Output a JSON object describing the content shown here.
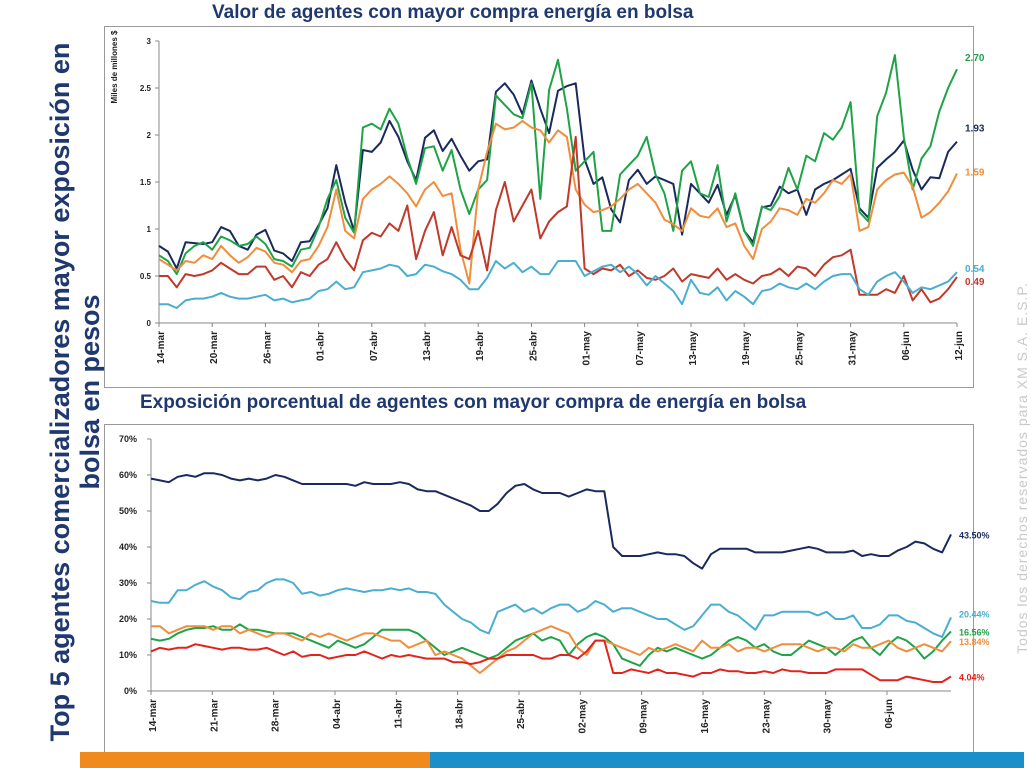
{
  "side_title": "Top 5 agentes comercializadores mayor exposición en bolsa en pesos",
  "watermark": "Todos los derechos reservados para XM S.A. E.S.P.",
  "colors": {
    "navy": "#1a2a5e",
    "green": "#1fa347",
    "orange": "#ef8e3c",
    "red": "#c0392b",
    "lightblue": "#4aaed0",
    "red_bright": "#e3231b",
    "title": "#1f3870",
    "bar_orange": "#f08a1c",
    "bar_blue": "#1a8fc9"
  },
  "chart_data": [
    {
      "type": "line",
      "title": "Valor de agentes con mayor compra energía en bolsa",
      "ylabel": "Miles de millones $",
      "xlabel": "",
      "ylim": [
        0,
        3
      ],
      "yticks": [
        0,
        0.5,
        1,
        1.5,
        2,
        2.5,
        3
      ],
      "ytick_labels": [
        "0",
        "0.5",
        "1",
        "1.5",
        "2",
        "2.5",
        "3"
      ],
      "xtick_labels": [
        "14-mar",
        "20-mar",
        "26-mar",
        "01-abr",
        "07-abr",
        "13-abr",
        "19-abr",
        "25-abr",
        "01-may",
        "07-may",
        "13-may",
        "19-may",
        "25-may",
        "31-may",
        "06-jun",
        "12-jun"
      ],
      "n_points": 91,
      "series": [
        {
          "name": "navy",
          "color": "#1a2a5e",
          "end_label": "1.93",
          "values": [
            0.82,
            0.76,
            0.58,
            0.86,
            0.85,
            0.84,
            0.86,
            1.02,
            0.98,
            0.82,
            0.78,
            0.94,
            0.99,
            0.77,
            0.74,
            0.66,
            0.86,
            0.87,
            1.04,
            1.22,
            1.68,
            1.28,
            0.98,
            1.84,
            1.82,
            1.92,
            2.15,
            1.98,
            1.72,
            1.52,
            1.97,
            2.05,
            1.83,
            1.96,
            1.78,
            1.62,
            1.72,
            1.74,
            2.46,
            2.55,
            2.43,
            2.22,
            2.58,
            2.28,
            2.02,
            2.47,
            2.52,
            2.55,
            1.74,
            1.48,
            1.55,
            1.21,
            1.07,
            1.52,
            1.63,
            1.48,
            1.56,
            1.52,
            1.48,
            0.94,
            1.48,
            1.38,
            1.28,
            1.47,
            1.15,
            1.36,
            0.98,
            0.86,
            1.23,
            1.25,
            1.45,
            1.38,
            1.42,
            1.15,
            1.42,
            1.48,
            1.52,
            1.58,
            1.64,
            1.22,
            1.12,
            1.65,
            1.74,
            1.82,
            1.94,
            1.63,
            1.42,
            1.55,
            1.54,
            1.82,
            1.93
          ]
        },
        {
          "name": "green",
          "color": "#1fa347",
          "end_label": "2.70",
          "values": [
            0.72,
            0.66,
            0.52,
            0.74,
            0.82,
            0.86,
            0.78,
            0.92,
            0.88,
            0.82,
            0.84,
            0.92,
            0.84,
            0.68,
            0.66,
            0.6,
            0.78,
            0.8,
            1.02,
            1.32,
            1.52,
            1.12,
            0.96,
            2.08,
            2.12,
            2.06,
            2.28,
            2.12,
            1.76,
            1.48,
            1.86,
            1.88,
            1.62,
            1.84,
            1.42,
            1.16,
            1.42,
            1.52,
            2.42,
            2.32,
            2.22,
            2.18,
            2.55,
            1.32,
            2.48,
            2.8,
            2.28,
            1.62,
            1.72,
            1.82,
            0.98,
            0.98,
            1.58,
            1.68,
            1.78,
            1.98,
            1.58,
            1.38,
            0.98,
            1.62,
            1.72,
            1.38,
            1.34,
            1.68,
            1.08,
            1.38,
            0.98,
            0.82,
            1.24,
            1.2,
            1.35,
            1.65,
            1.42,
            1.78,
            1.72,
            2.02,
            1.95,
            2.08,
            2.35,
            1.18,
            1.08,
            2.2,
            2.45,
            2.85,
            1.98,
            1.42,
            1.75,
            1.88,
            2.25,
            2.5,
            2.7
          ]
        },
        {
          "name": "orange",
          "color": "#ef8e3c",
          "end_label": "1.59",
          "values": [
            0.68,
            0.62,
            0.56,
            0.66,
            0.64,
            0.72,
            0.68,
            0.82,
            0.72,
            0.64,
            0.7,
            0.8,
            0.76,
            0.64,
            0.62,
            0.54,
            0.66,
            0.68,
            0.82,
            1.02,
            1.42,
            0.98,
            0.9,
            1.32,
            1.42,
            1.48,
            1.56,
            1.48,
            1.38,
            1.24,
            1.42,
            1.5,
            1.35,
            1.38,
            0.78,
            0.42,
            1.42,
            1.82,
            2.12,
            2.06,
            2.08,
            2.15,
            2.08,
            2.05,
            1.92,
            2.05,
            1.98,
            1.42,
            1.26,
            1.18,
            1.2,
            1.24,
            1.32,
            1.42,
            1.48,
            1.38,
            1.28,
            1.1,
            1.05,
            0.98,
            1.22,
            1.14,
            1.12,
            1.22,
            1.02,
            1.06,
            0.82,
            0.68,
            1.0,
            1.08,
            1.22,
            1.2,
            1.15,
            1.32,
            1.28,
            1.38,
            1.52,
            1.48,
            1.58,
            0.98,
            1.02,
            1.42,
            1.52,
            1.58,
            1.6,
            1.45,
            1.12,
            1.18,
            1.28,
            1.4,
            1.59
          ]
        },
        {
          "name": "red",
          "color": "#c0392b",
          "end_label": "0.49",
          "values": [
            0.5,
            0.5,
            0.38,
            0.52,
            0.5,
            0.52,
            0.56,
            0.64,
            0.58,
            0.52,
            0.52,
            0.6,
            0.6,
            0.46,
            0.5,
            0.38,
            0.54,
            0.5,
            0.62,
            0.68,
            0.86,
            0.68,
            0.56,
            0.88,
            0.96,
            0.92,
            1.06,
            0.98,
            1.25,
            0.68,
            0.98,
            1.18,
            0.72,
            1.02,
            0.72,
            0.68,
            0.98,
            0.56,
            1.2,
            1.5,
            1.08,
            1.25,
            1.42,
            0.9,
            1.08,
            1.18,
            1.24,
            1.98,
            0.58,
            0.52,
            0.58,
            0.56,
            0.62,
            0.5,
            0.56,
            0.48,
            0.46,
            0.5,
            0.58,
            0.44,
            0.52,
            0.5,
            0.48,
            0.58,
            0.46,
            0.52,
            0.46,
            0.42,
            0.5,
            0.52,
            0.58,
            0.5,
            0.6,
            0.58,
            0.5,
            0.62,
            0.7,
            0.72,
            0.78,
            0.3,
            0.3,
            0.3,
            0.36,
            0.32,
            0.5,
            0.24,
            0.36,
            0.22,
            0.26,
            0.36,
            0.49
          ]
        },
        {
          "name": "lightblue",
          "color": "#4aaed0",
          "end_label": "0.54",
          "values": [
            0.2,
            0.2,
            0.16,
            0.24,
            0.26,
            0.26,
            0.28,
            0.32,
            0.28,
            0.26,
            0.26,
            0.28,
            0.3,
            0.24,
            0.26,
            0.22,
            0.24,
            0.26,
            0.34,
            0.36,
            0.44,
            0.36,
            0.38,
            0.54,
            0.56,
            0.58,
            0.62,
            0.6,
            0.5,
            0.52,
            0.62,
            0.6,
            0.55,
            0.52,
            0.46,
            0.36,
            0.36,
            0.48,
            0.66,
            0.58,
            0.64,
            0.54,
            0.6,
            0.52,
            0.52,
            0.66,
            0.66,
            0.66,
            0.5,
            0.55,
            0.6,
            0.62,
            0.54,
            0.6,
            0.52,
            0.4,
            0.5,
            0.42,
            0.34,
            0.2,
            0.46,
            0.32,
            0.3,
            0.38,
            0.24,
            0.34,
            0.28,
            0.2,
            0.34,
            0.36,
            0.42,
            0.38,
            0.36,
            0.42,
            0.36,
            0.44,
            0.5,
            0.52,
            0.52,
            0.36,
            0.3,
            0.44,
            0.5,
            0.54,
            0.44,
            0.32,
            0.38,
            0.36,
            0.4,
            0.44,
            0.54
          ]
        }
      ]
    },
    {
      "type": "line",
      "title": "Exposición porcentual de agentes con mayor compra de energía en bolsa",
      "xlabel": "",
      "ylabel": "",
      "ylim": [
        0,
        70
      ],
      "yticks": [
        0,
        10,
        20,
        30,
        40,
        50,
        60,
        70
      ],
      "ytick_labels": [
        "0%",
        "10%",
        "20%",
        "30%",
        "40%",
        "50%",
        "60%",
        "70%"
      ],
      "xtick_labels": [
        "14-mar",
        "21-mar",
        "28-mar",
        "04-abr",
        "11-abr",
        "18-abr",
        "25-abr",
        "02-may",
        "09-may",
        "16-may",
        "23-may",
        "30-may",
        "06-jun"
      ],
      "n_points": 91,
      "series": [
        {
          "name": "navy",
          "color": "#1a2a5e",
          "end_label": "43.50%",
          "values": [
            59,
            58.5,
            58,
            59.5,
            60,
            59.5,
            60.5,
            60.5,
            60,
            59,
            58.5,
            59,
            58.5,
            59,
            60,
            59.5,
            58.5,
            57.5,
            57.5,
            57.5,
            57.5,
            57.5,
            57.5,
            57,
            58,
            57.5,
            57.5,
            57.5,
            58,
            57.5,
            56,
            55.5,
            55.5,
            54.5,
            53.5,
            52.5,
            51.5,
            50,
            50,
            52,
            55,
            57,
            57.5,
            56,
            55,
            55,
            55,
            54,
            55,
            56,
            55.5,
            55.5,
            40,
            37.5,
            37.5,
            37.5,
            38,
            38.5,
            38,
            38,
            37.5,
            35.5,
            34,
            38,
            39.5,
            39.5,
            39.5,
            39.5,
            38.5,
            38.5,
            38.5,
            38.5,
            39,
            39.5,
            40,
            39.5,
            38.5,
            38.5,
            38.5,
            39,
            37.5,
            38,
            37.5,
            37.5,
            39,
            40,
            41.5,
            41,
            39.5,
            38.5,
            43.5
          ]
        },
        {
          "name": "lightblue",
          "color": "#4aaed0",
          "end_label": "20.44%",
          "values": [
            25,
            24.5,
            24.5,
            28,
            28,
            29.5,
            30.5,
            29,
            28,
            26,
            25.5,
            27.5,
            28,
            30,
            31,
            31,
            30,
            27,
            27.5,
            26.5,
            27,
            28,
            28.5,
            28,
            27.5,
            28,
            28,
            28.5,
            28,
            28.5,
            27.5,
            27.5,
            27,
            24,
            22,
            20,
            19,
            17,
            16,
            22,
            23,
            24,
            22,
            23,
            21.5,
            23,
            24,
            24,
            22,
            23,
            25,
            24,
            22,
            23,
            23,
            22,
            21,
            20,
            20,
            18.5,
            17,
            18,
            21,
            24,
            24,
            22,
            21,
            19,
            17,
            21,
            21,
            22,
            22,
            22,
            22,
            21,
            22,
            20,
            20,
            21,
            17.5,
            17.5,
            18.5,
            21,
            21,
            19.5,
            19,
            17.5,
            16,
            15,
            20.44
          ]
        },
        {
          "name": "green",
          "color": "#1fa347",
          "end_label": "16.56%",
          "values": [
            14.5,
            14,
            14.5,
            16,
            17,
            17.5,
            17.5,
            18,
            17,
            17,
            18.5,
            17,
            17,
            16.5,
            16,
            16,
            16,
            15,
            14,
            13,
            12,
            14,
            13,
            12,
            13,
            15,
            17,
            17,
            17,
            17,
            16,
            14,
            12,
            10,
            11,
            12,
            11,
            10,
            9,
            10,
            12,
            14,
            15,
            16,
            14,
            15,
            14,
            10,
            13,
            15,
            16,
            15,
            13,
            9,
            8,
            7,
            10,
            12,
            11,
            12,
            11,
            10,
            9,
            10,
            12,
            14,
            15,
            14,
            12,
            13,
            11,
            10,
            10,
            12,
            14,
            13,
            12,
            10,
            12,
            14,
            15,
            12,
            10,
            13,
            15,
            14,
            12,
            9,
            11,
            14,
            16.56
          ]
        },
        {
          "name": "orange",
          "color": "#ef8e3c",
          "end_label": "13.84%",
          "values": [
            18,
            18,
            16,
            17,
            18,
            18,
            18,
            17,
            18,
            18,
            16,
            17,
            16,
            15,
            16,
            16,
            15,
            14,
            16,
            15,
            16,
            15,
            14,
            15,
            16,
            16,
            15,
            14,
            14,
            12,
            13,
            14,
            10,
            11,
            10,
            9,
            7,
            5,
            7,
            9,
            11,
            12,
            14,
            16,
            17,
            18,
            17,
            16,
            12,
            10,
            14,
            14,
            13,
            12,
            11,
            10,
            12,
            11,
            12,
            13,
            12,
            11,
            14,
            12,
            12,
            13,
            11,
            12,
            12,
            11,
            12,
            13,
            13,
            13,
            12,
            11,
            12,
            12,
            11,
            13,
            12,
            12,
            13,
            14,
            12,
            11,
            12,
            13,
            12,
            11,
            13.84
          ]
        },
        {
          "name": "red",
          "color": "#e3231b",
          "end_label": "4.04%",
          "values": [
            11,
            12,
            11.5,
            12,
            12,
            13,
            12.5,
            12,
            11.5,
            12,
            12,
            11.5,
            11.5,
            12,
            11,
            10,
            11,
            9.5,
            10,
            10,
            9,
            9.5,
            10,
            10,
            11,
            10,
            9,
            10,
            9.5,
            10,
            9.5,
            9,
            9,
            9,
            8,
            8,
            7.5,
            8,
            9,
            9,
            10,
            10,
            10,
            10,
            9,
            9,
            10,
            10,
            9,
            11,
            14,
            14,
            5,
            5,
            6,
            5.5,
            5,
            6,
            5,
            5,
            4.5,
            4,
            5,
            5,
            6,
            5.5,
            5.5,
            5,
            5,
            5.5,
            5,
            6,
            5.5,
            5.5,
            5,
            5,
            5,
            6,
            6,
            6,
            6,
            4.5,
            3,
            3,
            3,
            4,
            3.5,
            3,
            2.5,
            2.5,
            4.04
          ]
        }
      ]
    }
  ]
}
